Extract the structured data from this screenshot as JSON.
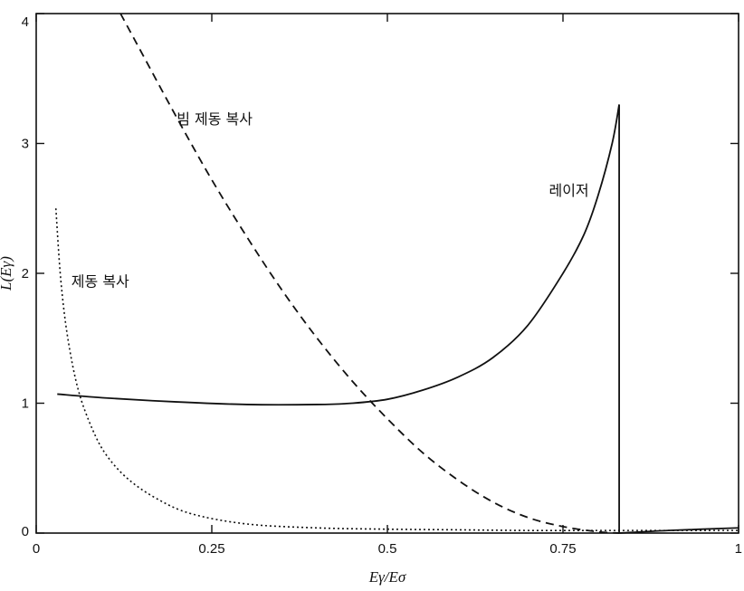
{
  "chart_data": {
    "type": "line",
    "title": "",
    "xlabel": "Eγ/Eσ",
    "ylabel": "L(Eγ)",
    "xlim": [
      0,
      1
    ],
    "ylim": [
      0,
      4
    ],
    "x_ticks": [
      0,
      0.25,
      0.5,
      0.75,
      1
    ],
    "x_tick_labels": [
      "0",
      "0.25",
      "0.5",
      "0.75",
      "1"
    ],
    "y_ticks": [
      0,
      1,
      2,
      3,
      4
    ],
    "y_tick_labels": [
      "0",
      "1",
      "2",
      "3",
      "4"
    ],
    "grid": false,
    "legend": "none",
    "series": [
      {
        "name": "레이저",
        "style": "solid",
        "color": "#111111",
        "x": [
          0.03,
          0.1,
          0.2,
          0.3,
          0.4,
          0.45,
          0.5,
          0.55,
          0.6,
          0.65,
          0.7,
          0.75,
          0.78,
          0.8,
          0.82,
          0.83,
          0.83,
          0.9,
          1.0
        ],
        "y": [
          1.07,
          1.04,
          1.01,
          0.99,
          0.99,
          1.0,
          1.03,
          1.1,
          1.2,
          1.35,
          1.6,
          2.0,
          2.3,
          2.6,
          3.0,
          3.3,
          0.0,
          0.02,
          0.04
        ]
      },
      {
        "name": "빔 제동 복사",
        "style": "dashed",
        "color": "#111111",
        "x": [
          0.12,
          0.15,
          0.2,
          0.25,
          0.3,
          0.35,
          0.4,
          0.45,
          0.5,
          0.55,
          0.6,
          0.65,
          0.7,
          0.75,
          0.8,
          0.83
        ],
        "y": [
          4.0,
          3.7,
          3.2,
          2.72,
          2.28,
          1.87,
          1.5,
          1.17,
          0.88,
          0.62,
          0.41,
          0.24,
          0.12,
          0.05,
          0.01,
          0.0
        ]
      },
      {
        "name": "제동 복사",
        "style": "dotted",
        "color": "#111111",
        "x": [
          0.028,
          0.035,
          0.045,
          0.06,
          0.08,
          0.1,
          0.13,
          0.17,
          0.22,
          0.3,
          0.4,
          0.5,
          0.6,
          0.7,
          0.8,
          0.9,
          1.0
        ],
        "y": [
          2.5,
          1.95,
          1.5,
          1.1,
          0.8,
          0.6,
          0.42,
          0.27,
          0.15,
          0.07,
          0.04,
          0.03,
          0.025,
          0.02,
          0.02,
          0.02,
          0.02
        ]
      }
    ],
    "annotations": [
      {
        "text": "빔 제동 복사",
        "x": 0.2,
        "y": 3.15
      },
      {
        "text": "레이저",
        "x": 0.73,
        "y": 2.6
      },
      {
        "text": "제동 복사",
        "x": 0.05,
        "y": 1.9
      }
    ]
  }
}
